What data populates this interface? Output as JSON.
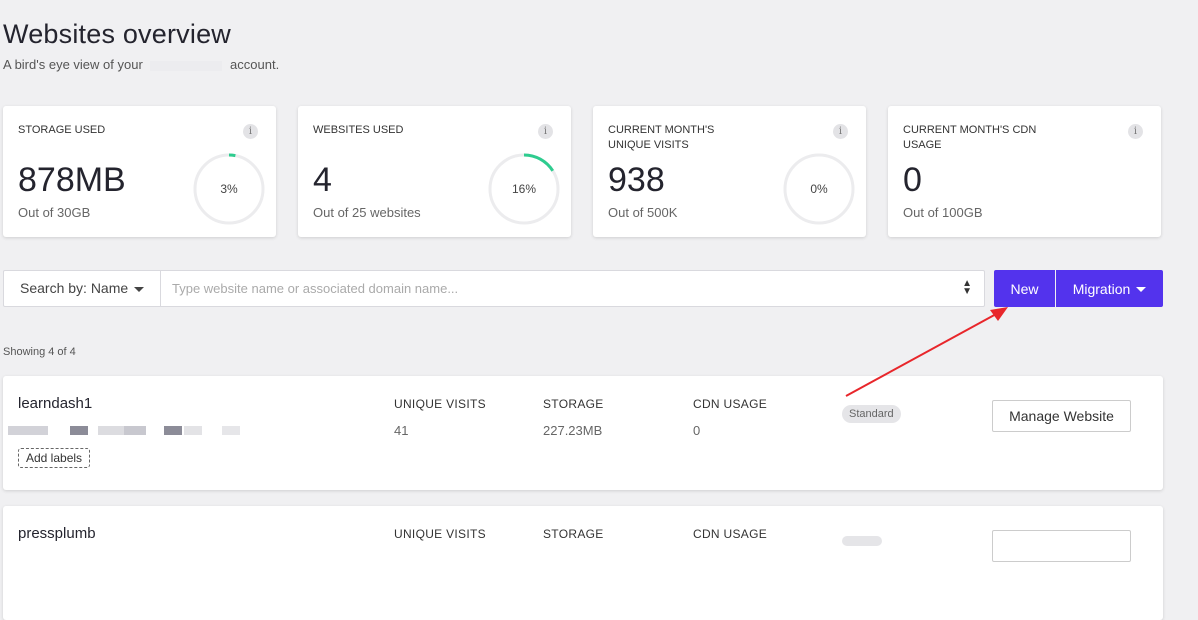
{
  "page": {
    "title": "Websites overview",
    "subtitle_prefix": "A bird's eye view of your",
    "subtitle_suffix": "account."
  },
  "stats": [
    {
      "label": "STORAGE USED",
      "value": "878MB",
      "sub": "Out of 30GB",
      "percent": 3,
      "percent_label": "3%",
      "icon": "info-icon"
    },
    {
      "label": "WEBSITES USED",
      "value": "4",
      "sub": "Out of 25 websites",
      "percent": 16,
      "percent_label": "16%",
      "icon": "info-icon"
    },
    {
      "label": "CURRENT MONTH'S UNIQUE VISITS",
      "value": "938",
      "sub": "Out of 500K",
      "percent": 0,
      "percent_label": "0%",
      "icon": "info-icon"
    },
    {
      "label": "CURRENT MONTH'S CDN USAGE",
      "value": "0",
      "sub": "Out of 100GB",
      "icon": "info-icon"
    }
  ],
  "search": {
    "by_label": "Search by: Name",
    "placeholder": "Type website name or associated domain name...",
    "value": ""
  },
  "actions": {
    "new_label": "New",
    "migration_label": "Migration"
  },
  "list": {
    "showing": "Showing 4 of 4",
    "sites": [
      {
        "name": "learndash1",
        "unique_visits_label": "UNIQUE VISITS",
        "unique_visits": "41",
        "storage_label": "STORAGE",
        "storage": "227.23MB",
        "cdn_label": "CDN USAGE",
        "cdn": "0",
        "plan": "Standard",
        "add_labels": "Add labels",
        "manage_label": "Manage Website"
      },
      {
        "name": "pressplumb",
        "unique_visits_label": "UNIQUE VISITS",
        "storage_label": "STORAGE",
        "cdn_label": "CDN USAGE"
      }
    ]
  },
  "colors": {
    "accent": "#5333ed",
    "gauge_fill": "#2ecc8f",
    "gauge_track": "#ececee",
    "annotation_arrow": "#e8262b"
  }
}
